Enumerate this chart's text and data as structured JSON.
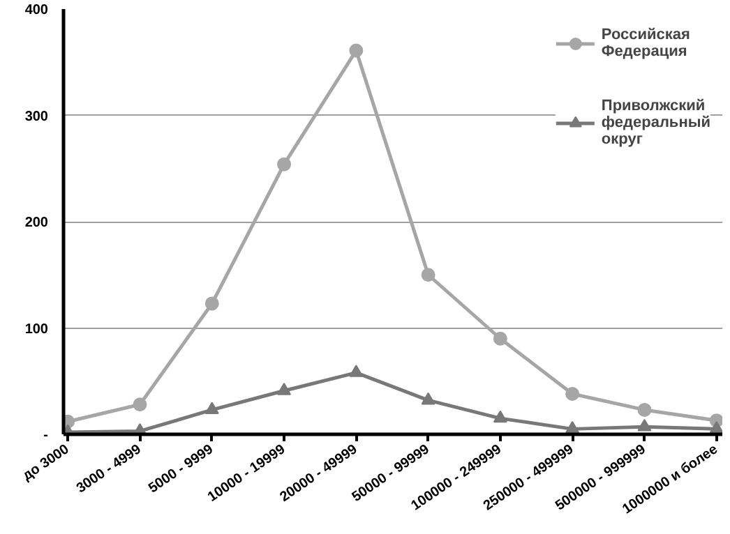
{
  "chart_data": {
    "type": "line",
    "categories": [
      "до 3000",
      "3000 - 4999",
      "5000 - 9999",
      "10000 - 19999",
      "20000 - 49999",
      "50000 - 99999",
      "100000 - 249999",
      "250000 - 499999",
      "500000 - 999999",
      "1000000 и более"
    ],
    "series": [
      {
        "name": "Российская Федерация",
        "color": "#a6a6a6",
        "marker": "circle",
        "values": [
          12,
          28,
          123,
          254,
          361,
          150,
          90,
          38,
          23,
          13
        ]
      },
      {
        "name": "Приволжский федеральный округ",
        "color": "#787878",
        "marker": "triangle",
        "values": [
          2,
          3,
          23,
          41,
          58,
          32,
          15,
          5,
          7,
          5
        ]
      }
    ],
    "ylim": [
      0,
      400
    ],
    "yticks": [
      {
        "value": 0,
        "label": "-"
      },
      100,
      200,
      300,
      400
    ],
    "grid": "y",
    "legend": "top right",
    "line_style": "solid"
  }
}
